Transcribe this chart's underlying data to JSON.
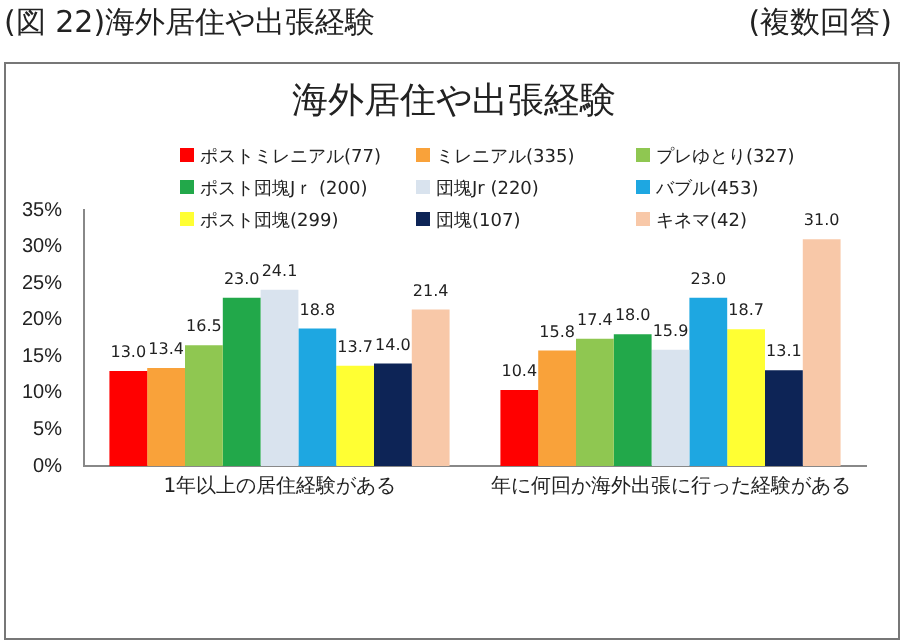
{
  "chart_data": {
    "type": "bar",
    "title": "海外居住や出張経験",
    "annotations": [
      "(図 22)海外居住や出張経験",
      "(複数回答)"
    ],
    "categories": [
      "1年以上の居住経験がある",
      "年に何回か海外出張に行った経験がある"
    ],
    "series": [
      {
        "name": "ポストミレニアル(77)",
        "color": "#ff0000",
        "values": [
          13.0,
          10.4
        ],
        "value_labels": [
          "13.0",
          "10.4"
        ]
      },
      {
        "name": "ミレニアル(335)",
        "color": "#f9a23a",
        "values": [
          13.4,
          15.8
        ],
        "value_labels": [
          "13.4",
          "15.8"
        ]
      },
      {
        "name": "プレゆとり(327)",
        "color": "#8fc751",
        "values": [
          16.5,
          17.4
        ],
        "value_labels": [
          "16.5",
          "17.4"
        ]
      },
      {
        "name": "ポスト団塊Jｒ (200)",
        "color": "#22a84a",
        "values": [
          23.0,
          18.0
        ],
        "value_labels": [
          "23.0",
          "18.0"
        ]
      },
      {
        "name": "団塊Jr (220)",
        "color": "#d9e3ee",
        "values": [
          24.1,
          15.9
        ],
        "value_labels": [
          "24.1",
          "15.9"
        ]
      },
      {
        "name": "バブル(453)",
        "color": "#1ea7e1",
        "values": [
          18.8,
          23.0
        ],
        "value_labels": [
          "18.8",
          "23.0"
        ]
      },
      {
        "name": "ポスト団塊(299)",
        "color": "#ffff33",
        "values": [
          13.7,
          18.7
        ],
        "value_labels": [
          "13.7",
          "18.7"
        ]
      },
      {
        "name": "団塊(107)",
        "color": "#0d2456",
        "values": [
          14.0,
          13.1
        ],
        "value_labels": [
          "14.0",
          "13.1"
        ]
      },
      {
        "name": "キネマ(42)",
        "color": "#f8c8a8",
        "values": [
          21.4,
          31.0
        ],
        "value_labels": [
          "21.4",
          "31.0"
        ]
      }
    ],
    "ylim": [
      0,
      35
    ],
    "yticks": [
      {
        "value": 0,
        "label": "0%"
      },
      {
        "value": 5,
        "label": "5%"
      },
      {
        "value": 10,
        "label": "10%"
      },
      {
        "value": 15,
        "label": "15%"
      },
      {
        "value": 20,
        "label": "20%"
      },
      {
        "value": 25,
        "label": "25%"
      },
      {
        "value": 30,
        "label": "30%"
      },
      {
        "value": 35,
        "label": "35%"
      }
    ],
    "grid": false,
    "legend": "top"
  }
}
